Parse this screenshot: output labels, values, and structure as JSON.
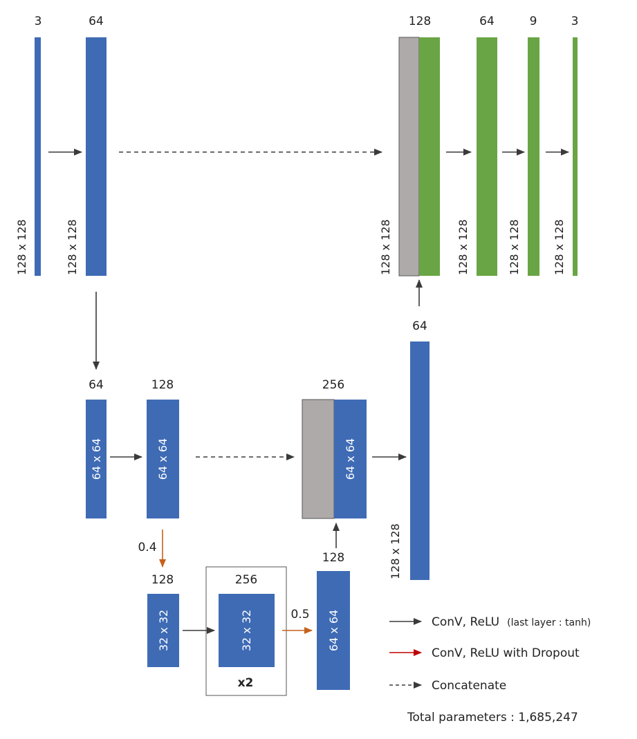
{
  "colors": {
    "blue_block": "#3f6bb5",
    "green_block": "#69a544",
    "gray_block": "#aeaaaa",
    "arrow_black": "#3a3a3a",
    "arrow_orange": "#c5621c",
    "legend_red": "#c00000"
  },
  "encoder": {
    "input_channels": "3",
    "input_size": "128 x 128",
    "conv1_channels": "64",
    "conv1_size": "128 x 128",
    "down1_channels": "64",
    "down1_size": "64 x 64",
    "conv2_channels": "128",
    "conv2_size": "64 x 64",
    "dropout1_rate": "0.4",
    "down2_channels": "128",
    "down2_size": "32 x 32"
  },
  "bottleneck": {
    "channels": "256",
    "size": "32 x 32",
    "repeat": "x2",
    "dropout_rate": "0.5"
  },
  "decoder": {
    "up1_channels": "128",
    "up1_size": "64 x 64",
    "concat1_channels": "256",
    "concat1_size": "64 x 64",
    "up2_channels": "64",
    "up2_size": "128 x 128",
    "concat2_channels": "128",
    "concat2_size": "128 x 128",
    "conv3_channels": "64",
    "conv3_size": "128 x 128",
    "conv4_channels": "9",
    "conv4_size": "128 x 128",
    "output_channels": "3",
    "output_size": "128 x 128"
  },
  "legend": {
    "conv_relu_main": "ConV, ReLU",
    "conv_relu_note": "(last layer : tanh)",
    "dropout": "ConV, ReLU with Dropout",
    "concatenate": "Concatenate",
    "total_parameters": "Total parameters : 1,685,247"
  }
}
